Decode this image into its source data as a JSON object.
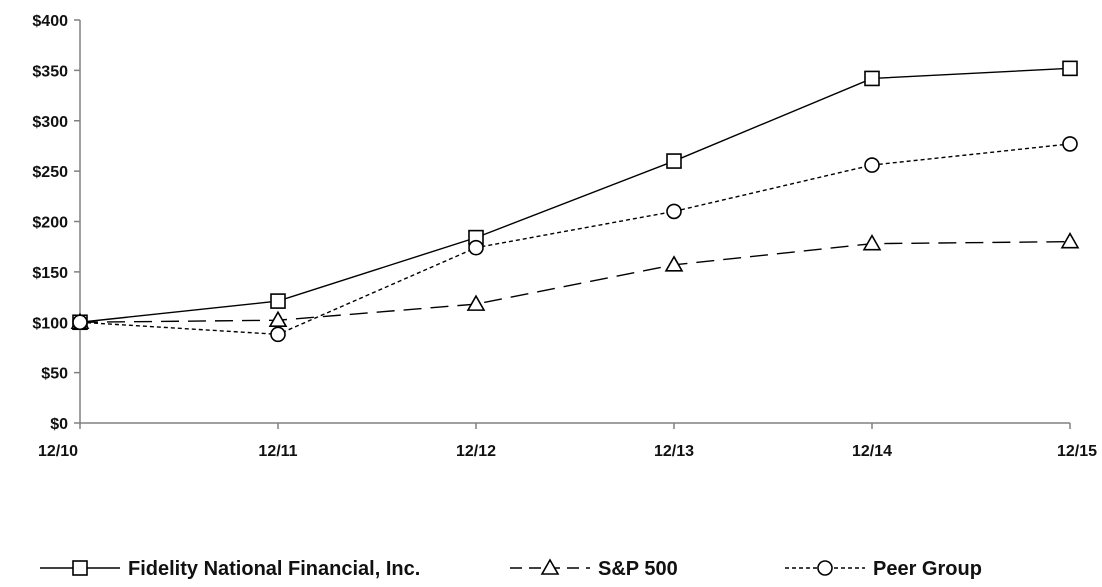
{
  "chart_data": {
    "type": "line",
    "title": "",
    "xlabel": "",
    "ylabel": "",
    "categories": [
      "12/10",
      "12/11",
      "12/12",
      "12/13",
      "12/14",
      "12/15"
    ],
    "y_ticks": [
      "$0",
      "$50",
      "$100",
      "$150",
      "$200",
      "$250",
      "$300",
      "$350",
      "$400"
    ],
    "ylim": [
      0,
      400
    ],
    "grid": false,
    "legend_position": "bottom",
    "series": [
      {
        "name": "Fidelity National Financial, Inc.",
        "marker": "square",
        "dash": "solid",
        "color": "#000000",
        "values": [
          100,
          121,
          184,
          260,
          342,
          352
        ]
      },
      {
        "name": "S&P 500",
        "marker": "triangle",
        "dash": "dashed",
        "color": "#000000",
        "values": [
          100,
          102,
          118,
          157,
          178,
          180
        ]
      },
      {
        "name": "Peer Group",
        "marker": "circle",
        "dash": "dotted",
        "color": "#000000",
        "values": [
          100,
          88,
          174,
          210,
          256,
          277
        ]
      }
    ]
  }
}
